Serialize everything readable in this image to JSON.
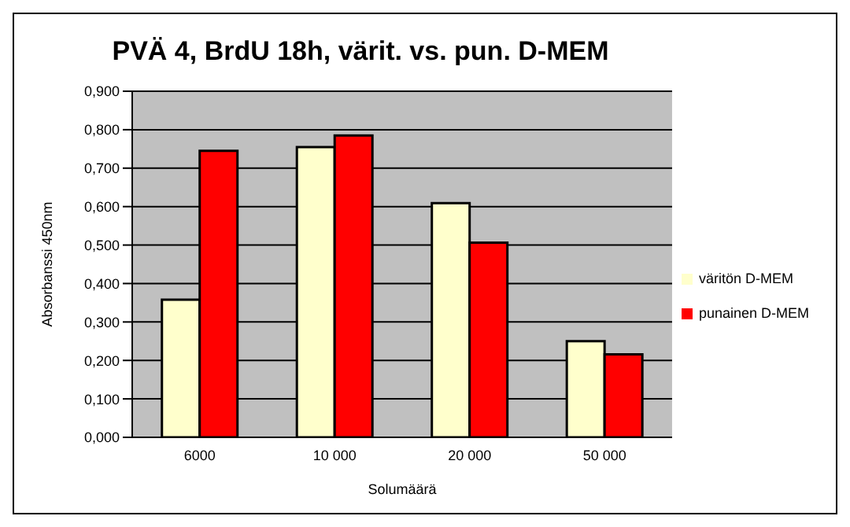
{
  "chart_data": {
    "type": "bar",
    "title": "PVÄ 4, BrdU 18h, värit. vs. pun. D-MEM",
    "xlabel": "Solumäärä",
    "ylabel": "Absorbanssi  450nm",
    "categories": [
      "6000",
      "10 000",
      "20 000",
      "50 000"
    ],
    "series": [
      {
        "name": "väritön D-MEM",
        "color": "#ffffcc",
        "values": [
          0.358,
          0.755,
          0.609,
          0.25
        ]
      },
      {
        "name": "punainen D-MEM",
        "color": "#ff0000",
        "values": [
          0.745,
          0.785,
          0.506,
          0.216
        ]
      }
    ],
    "ylim": [
      0,
      0.9
    ],
    "yticks": [
      {
        "value": 0,
        "label": "0,000"
      },
      {
        "value": 0.1,
        "label": "0,100"
      },
      {
        "value": 0.2,
        "label": "0,200"
      },
      {
        "value": 0.3,
        "label": "0,300"
      },
      {
        "value": 0.4,
        "label": "0,400"
      },
      {
        "value": 0.5,
        "label": "0,500"
      },
      {
        "value": 0.6,
        "label": "0,600"
      },
      {
        "value": 0.7,
        "label": "0,700"
      },
      {
        "value": 0.8,
        "label": "0,800"
      },
      {
        "value": 0.9,
        "label": "0,900"
      }
    ],
    "grid": "y",
    "legend": "right"
  }
}
